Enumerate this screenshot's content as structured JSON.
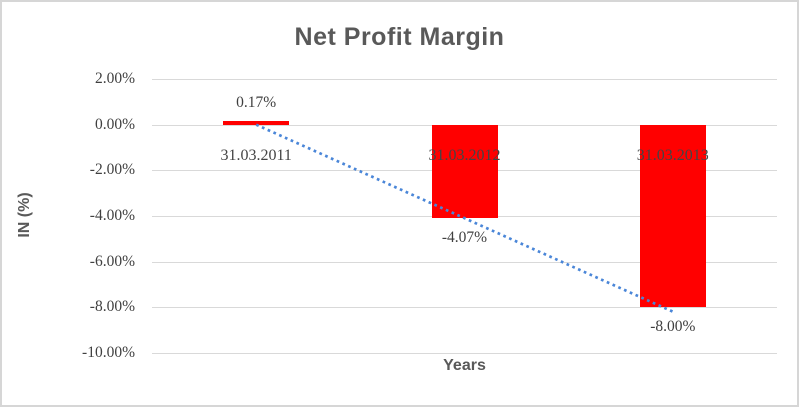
{
  "chart_data": {
    "type": "bar",
    "title": "Net Profit Margin",
    "xlabel": "Years",
    "ylabel": "IN (%)",
    "categories": [
      "31.03.2011",
      "31.03.2012",
      "31.03.2013"
    ],
    "values": [
      0.17,
      -4.07,
      -8.0
    ],
    "data_labels": [
      "0.17%",
      "-4.07%",
      "-8.00%"
    ],
    "ylim": [
      -10,
      2
    ],
    "yticks": [
      2,
      0,
      -2,
      -4,
      -6,
      -8,
      -10
    ],
    "ytick_labels": [
      "2.00%",
      "0.00%",
      "-2.00%",
      "-4.00%",
      "-6.00%",
      "-8.00%",
      "-10.00%"
    ],
    "grid": true,
    "legend": false,
    "bar_color": "#ff0000",
    "trendline": {
      "style": "dotted",
      "color": "#4a86d8",
      "start": {
        "category_index": 0,
        "value": 0.0
      },
      "end": {
        "category_index": 2,
        "value": -8.25
      }
    },
    "colors": {
      "gridline": "#d9d9d9",
      "title_text": "#595959",
      "tick_text": "#404040",
      "chart_border": "#d6d6d6",
      "background": "#ffffff"
    }
  }
}
